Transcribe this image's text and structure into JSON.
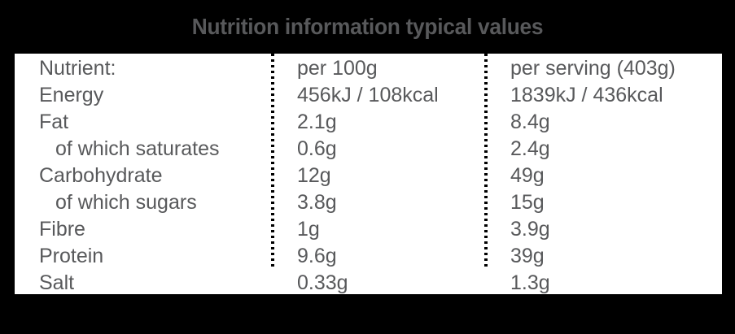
{
  "title": "Nutrition information typical values",
  "table": {
    "headers": {
      "nutrient": "Nutrient:",
      "per_100g": "per 100g",
      "per_serving": "per serving (403g)"
    },
    "rows": [
      {
        "nutrient": "Energy",
        "per_100g": "456kJ / 108kcal",
        "per_serving": "1839kJ / 436kcal",
        "indent": false
      },
      {
        "nutrient": "Fat",
        "per_100g": "2.1g",
        "per_serving": "8.4g",
        "indent": false
      },
      {
        "nutrient": "of which saturates",
        "per_100g": "0.6g",
        "per_serving": "2.4g",
        "indent": true
      },
      {
        "nutrient": "Carbohydrate",
        "per_100g": "12g",
        "per_serving": "49g",
        "indent": false
      },
      {
        "nutrient": "of which sugars",
        "per_100g": "3.8g",
        "per_serving": "15g",
        "indent": true
      },
      {
        "nutrient": "Fibre",
        "per_100g": "1g",
        "per_serving": "3.9g",
        "indent": false
      },
      {
        "nutrient": "Protein",
        "per_100g": "9.6g",
        "per_serving": "39g",
        "indent": false
      },
      {
        "nutrient": "Salt",
        "per_100g": "0.33g",
        "per_serving": "1.3g",
        "indent": false
      }
    ]
  },
  "colors": {
    "background": "#000000",
    "panel": "#FFFFFF",
    "text": "#58595B",
    "title": "#58595B",
    "divider": "#000000"
  }
}
